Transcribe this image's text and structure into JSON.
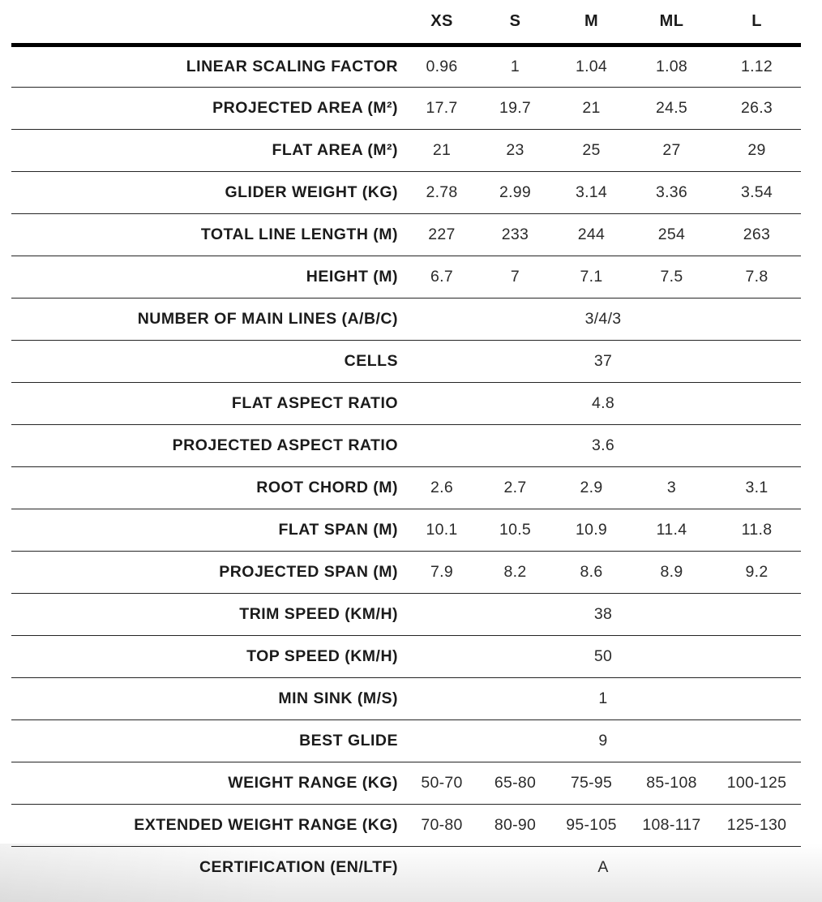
{
  "colors": {
    "heavy_rule": "#000000",
    "light_rule": "#252525",
    "label_text": "#1b1b1b",
    "value_text": "#2b2b2b",
    "bottom_shade": "#e7e7e7"
  },
  "chart_data": {
    "type": "table",
    "title": "",
    "columns": [
      "",
      "XS",
      "S",
      "M",
      "ML",
      "L"
    ],
    "rows": [
      {
        "label": "LINEAR SCALING FACTOR",
        "values": [
          "0.96",
          "1",
          "1.04",
          "1.08",
          "1.12"
        ]
      },
      {
        "label": "PROJECTED AREA (M²)",
        "values": [
          "17.7",
          "19.7",
          "21",
          "24.5",
          "26.3"
        ]
      },
      {
        "label": "FLAT AREA (M²)",
        "values": [
          "21",
          "23",
          "25",
          "27",
          "29"
        ]
      },
      {
        "label": "GLIDER WEIGHT (KG)",
        "values": [
          "2.78",
          "2.99",
          "3.14",
          "3.36",
          "3.54"
        ]
      },
      {
        "label": "TOTAL LINE LENGTH (M)",
        "values": [
          "227",
          "233",
          "244",
          "254",
          "263"
        ]
      },
      {
        "label": "HEIGHT (M)",
        "values": [
          "6.7",
          "7",
          "7.1",
          "7.5",
          "7.8"
        ]
      },
      {
        "label": "NUMBER OF MAIN LINES (A/B/C)",
        "span_value": "3/4/3"
      },
      {
        "label": "CELLS",
        "span_value": "37"
      },
      {
        "label": "FLAT ASPECT RATIO",
        "span_value": "4.8"
      },
      {
        "label": "PROJECTED ASPECT RATIO",
        "span_value": "3.6"
      },
      {
        "label": "ROOT CHORD (M)",
        "values": [
          "2.6",
          "2.7",
          "2.9",
          "3",
          "3.1"
        ]
      },
      {
        "label": "FLAT SPAN (M)",
        "values": [
          "10.1",
          "10.5",
          "10.9",
          "11.4",
          "11.8"
        ]
      },
      {
        "label": "PROJECTED SPAN (M)",
        "values": [
          "7.9",
          "8.2",
          "8.6",
          "8.9",
          "9.2"
        ]
      },
      {
        "label": "TRIM SPEED (KM/H)",
        "span_value": "38"
      },
      {
        "label": "TOP SPEED (KM/H)",
        "span_value": "50"
      },
      {
        "label": "MIN SINK (M/S)",
        "span_value": "1"
      },
      {
        "label": "BEST GLIDE",
        "span_value": "9"
      },
      {
        "label": "WEIGHT RANGE (KG)",
        "values": [
          "50-70",
          "65-80",
          "75-95",
          "85-108",
          "100-125"
        ]
      },
      {
        "label": "EXTENDED WEIGHT RANGE (KG)",
        "values": [
          "70-80",
          "80-90",
          "95-105",
          "108-117",
          "125-130"
        ]
      },
      {
        "label": "CERTIFICATION (EN/LTF)",
        "span_value": "A"
      }
    ]
  }
}
